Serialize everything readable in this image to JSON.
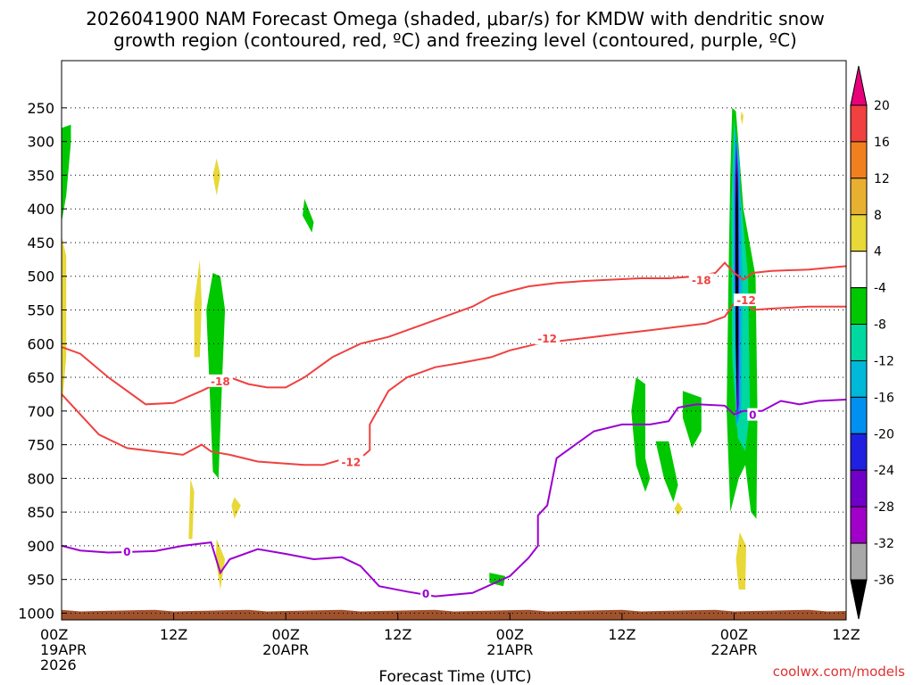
{
  "chart_data": {
    "type": "heatmap",
    "title_lines": [
      "2026041900 NAM Forecast Omega (shaded, μbar/s) for KMDW with dendritic snow",
      "growth region (contoured, red, ºC) and freezing level (contoured, purple, ºC)"
    ],
    "xlabel": "Forecast Time (UTC)",
    "credit": "coolwx.com/models",
    "x_range_hours": [
      0,
      84
    ],
    "y_range_hpa": [
      1010,
      180
    ],
    "y_ticks": [
      250,
      300,
      350,
      400,
      450,
      500,
      550,
      600,
      650,
      700,
      750,
      800,
      850,
      900,
      950,
      1000
    ],
    "x_ticks": [
      {
        "h": 0,
        "lines": [
          "00Z",
          "19APR",
          "2026"
        ]
      },
      {
        "h": 12,
        "lines": [
          "12Z"
        ]
      },
      {
        "h": 24,
        "lines": [
          "00Z",
          "20APR"
        ]
      },
      {
        "h": 36,
        "lines": [
          "12Z"
        ]
      },
      {
        "h": 48,
        "lines": [
          "00Z",
          "21APR"
        ]
      },
      {
        "h": 60,
        "lines": [
          "12Z"
        ]
      },
      {
        "h": 72,
        "lines": [
          "00Z",
          "22APR"
        ]
      },
      {
        "h": 84,
        "lines": [
          "12Z"
        ]
      }
    ],
    "colorbar": {
      "levels": [
        "20",
        "16",
        "12",
        "8",
        "4",
        "-4",
        "-8",
        "-12",
        "-16",
        "-20",
        "-24",
        "-28",
        "-32",
        "-36"
      ],
      "colors": [
        "#e8007a",
        "#f04040",
        "#f07f20",
        "#e8b030",
        "#e8d838",
        "#ffffff",
        "#00c800",
        "#00d8a0",
        "#00b8d8",
        "#0090f0",
        "#2020e0",
        "#7000c8",
        "#a000c8",
        "#a8a8a8",
        "#000000"
      ]
    },
    "contours": {
      "freezing_level_0C": {
        "color": "#9b00d0",
        "label": "0",
        "points": [
          [
            0,
            900
          ],
          [
            2,
            907
          ],
          [
            5,
            910
          ],
          [
            10,
            908
          ],
          [
            13,
            900
          ],
          [
            16,
            895
          ],
          [
            17,
            940
          ],
          [
            18,
            920
          ],
          [
            21,
            905
          ],
          [
            24,
            912
          ],
          [
            27,
            920
          ],
          [
            30,
            917
          ],
          [
            32,
            930
          ],
          [
            34,
            960
          ],
          [
            37,
            968
          ],
          [
            40,
            975
          ],
          [
            44,
            970
          ],
          [
            48,
            945
          ],
          [
            50,
            918
          ],
          [
            51,
            900
          ],
          [
            51,
            855
          ],
          [
            52,
            840
          ],
          [
            53,
            770
          ],
          [
            55,
            750
          ],
          [
            57,
            730
          ],
          [
            60,
            720
          ],
          [
            63,
            720
          ],
          [
            65,
            715
          ],
          [
            66,
            695
          ],
          [
            68,
            690
          ],
          [
            71,
            692
          ],
          [
            72,
            705
          ],
          [
            73,
            700
          ],
          [
            75,
            700
          ],
          [
            77,
            685
          ],
          [
            79,
            690
          ],
          [
            81,
            685
          ],
          [
            84,
            683
          ]
        ]
      },
      "minus12C": {
        "color": "#f04040",
        "label": "-12",
        "points": [
          [
            0,
            675
          ],
          [
            2,
            705
          ],
          [
            4,
            735
          ],
          [
            7,
            755
          ],
          [
            10,
            760
          ],
          [
            13,
            765
          ],
          [
            15,
            750
          ],
          [
            16,
            760
          ],
          [
            18,
            765
          ],
          [
            21,
            775
          ],
          [
            24,
            778
          ],
          [
            26,
            780
          ],
          [
            28,
            780
          ],
          [
            30,
            772
          ],
          [
            32,
            770
          ],
          [
            33,
            758
          ],
          [
            33,
            720
          ],
          [
            35,
            670
          ],
          [
            37,
            650
          ],
          [
            40,
            635
          ],
          [
            43,
            628
          ],
          [
            46,
            620
          ],
          [
            48,
            610
          ],
          [
            51,
            600
          ],
          [
            54,
            595
          ],
          [
            57,
            590
          ],
          [
            60,
            585
          ],
          [
            63,
            580
          ],
          [
            66,
            575
          ],
          [
            69,
            570
          ],
          [
            71,
            560
          ],
          [
            72,
            540
          ],
          [
            73,
            530
          ],
          [
            74,
            550
          ],
          [
            76,
            548
          ],
          [
            80,
            545
          ],
          [
            84,
            545
          ]
        ]
      },
      "minus18C": {
        "color": "#f04040",
        "label": "-18",
        "points": [
          [
            0,
            605
          ],
          [
            2,
            615
          ],
          [
            5,
            650
          ],
          [
            9,
            690
          ],
          [
            12,
            688
          ],
          [
            15,
            670
          ],
          [
            18,
            650
          ],
          [
            20,
            660
          ],
          [
            22,
            665
          ],
          [
            24,
            665
          ],
          [
            26,
            650
          ],
          [
            29,
            620
          ],
          [
            32,
            600
          ],
          [
            35,
            590
          ],
          [
            38,
            575
          ],
          [
            41,
            560
          ],
          [
            44,
            545
          ],
          [
            46,
            530
          ],
          [
            48,
            522
          ],
          [
            50,
            515
          ],
          [
            53,
            510
          ],
          [
            56,
            507
          ],
          [
            59,
            505
          ],
          [
            62,
            503
          ],
          [
            65,
            503
          ],
          [
            68,
            500
          ],
          [
            70,
            495
          ],
          [
            71,
            480
          ],
          [
            72,
            495
          ],
          [
            73,
            505
          ],
          [
            74,
            495
          ],
          [
            76,
            492
          ],
          [
            80,
            490
          ],
          [
            84,
            485
          ]
        ]
      }
    },
    "omega_areas": [
      {
        "name": "omega-lift-minus4-a",
        "color": "#00c800",
        "points": [
          [
            0,
            280
          ],
          [
            1,
            275
          ],
          [
            1,
            300
          ],
          [
            0.5,
            380
          ],
          [
            0,
            420
          ]
        ]
      },
      {
        "name": "omega-sink-plus4-a",
        "color": "#e8d838",
        "points": [
          [
            0,
            440
          ],
          [
            0.5,
            470
          ],
          [
            0.5,
            620
          ],
          [
            0,
            700
          ]
        ]
      },
      {
        "name": "omega-sink-plus4-b",
        "color": "#e8d838",
        "points": [
          [
            16.6,
            325
          ],
          [
            17,
            350
          ],
          [
            16.6,
            380
          ],
          [
            16.2,
            350
          ]
        ]
      },
      {
        "name": "omega-sink-plus4-c",
        "color": "#e8d838",
        "points": [
          [
            14.8,
            475
          ],
          [
            15,
            540
          ],
          [
            14.8,
            620
          ],
          [
            14.2,
            620
          ],
          [
            14.2,
            540
          ]
        ]
      },
      {
        "name": "omega-lift-minus4-b",
        "color": "#00c800",
        "points": [
          [
            16.2,
            495
          ],
          [
            17,
            500
          ],
          [
            17.5,
            550
          ],
          [
            17.2,
            650
          ],
          [
            16.8,
            800
          ],
          [
            16.2,
            790
          ],
          [
            15.8,
            650
          ],
          [
            15.5,
            550
          ]
        ]
      },
      {
        "name": "omega-sink-plus4-d",
        "color": "#e8d838",
        "points": [
          [
            13.8,
            800
          ],
          [
            14.2,
            820
          ],
          [
            14,
            890
          ],
          [
            13.6,
            890
          ]
        ]
      },
      {
        "name": "omega-sink-plus4-e",
        "color": "#e8d838",
        "points": [
          [
            16.6,
            890
          ],
          [
            17.5,
            920
          ],
          [
            17,
            965
          ],
          [
            16.5,
            920
          ]
        ]
      },
      {
        "name": "omega-sink-plus4-f",
        "color": "#e8d838",
        "points": [
          [
            18.5,
            828
          ],
          [
            19.2,
            840
          ],
          [
            18.5,
            860
          ],
          [
            18.2,
            840
          ]
        ]
      },
      {
        "name": "omega-lift-minus4-c",
        "color": "#00c800",
        "points": [
          [
            26,
            385
          ],
          [
            27,
            420
          ],
          [
            26.8,
            435
          ],
          [
            25.8,
            410
          ]
        ]
      },
      {
        "name": "omega-lift-minus4-d",
        "color": "#00c800",
        "points": [
          [
            45.8,
            940
          ],
          [
            47.5,
            945
          ],
          [
            47.3,
            960
          ],
          [
            45.8,
            955
          ]
        ]
      },
      {
        "name": "omega-lift-minus4-e",
        "color": "#00c800",
        "points": [
          [
            61.5,
            650
          ],
          [
            62.5,
            660
          ],
          [
            62.5,
            770
          ],
          [
            63,
            800
          ],
          [
            62.5,
            820
          ],
          [
            61.5,
            780
          ],
          [
            61,
            700
          ]
        ]
      },
      {
        "name": "omega-lift-minus4-f",
        "color": "#00c800",
        "points": [
          [
            63.6,
            745
          ],
          [
            65,
            745
          ],
          [
            66,
            810
          ],
          [
            65.5,
            835
          ],
          [
            64.5,
            800
          ]
        ]
      },
      {
        "name": "omega-lift-minus4-g",
        "color": "#00c800",
        "points": [
          [
            66.5,
            670
          ],
          [
            68.5,
            680
          ],
          [
            68.5,
            730
          ],
          [
            67.5,
            755
          ],
          [
            66.5,
            710
          ]
        ]
      },
      {
        "name": "omega-sink-plus4-g",
        "color": "#e8d838",
        "points": [
          [
            66,
            835
          ],
          [
            66.5,
            845
          ],
          [
            66,
            855
          ],
          [
            65.6,
            845
          ]
        ]
      },
      {
        "name": "omega-lift-minus4-h",
        "color": "#00c800",
        "points": [
          [
            71.8,
            250
          ],
          [
            72.2,
            255
          ],
          [
            73,
            400
          ],
          [
            74.3,
            500
          ],
          [
            74.5,
            700
          ],
          [
            74.4,
            860
          ],
          [
            73.8,
            850
          ],
          [
            73.2,
            780
          ],
          [
            72.5,
            800
          ],
          [
            71.6,
            850
          ],
          [
            71.2,
            700
          ],
          [
            71.4,
            500
          ],
          [
            71.6,
            350
          ]
        ]
      },
      {
        "name": "omega-lift-minus8",
        "color": "#00d8a0",
        "points": [
          [
            72,
            265
          ],
          [
            72.5,
            350
          ],
          [
            73.5,
            500
          ],
          [
            73.7,
            700
          ],
          [
            73.2,
            760
          ],
          [
            72.4,
            740
          ],
          [
            71.8,
            620
          ],
          [
            71.7,
            400
          ]
        ]
      },
      {
        "name": "omega-lift-minus12",
        "color": "#00b8d8",
        "points": [
          [
            72.1,
            280
          ],
          [
            72.6,
            330
          ],
          [
            72.9,
            500
          ],
          [
            72.8,
            700
          ],
          [
            72.2,
            725
          ],
          [
            71.9,
            500
          ],
          [
            71.9,
            350
          ]
        ]
      },
      {
        "name": "omega-lift-minus20",
        "color": "#0090f0",
        "points": [
          [
            72.2,
            290
          ],
          [
            72.5,
            350
          ],
          [
            72.6,
            500
          ],
          [
            72.6,
            700
          ],
          [
            72.3,
            720
          ],
          [
            72.05,
            500
          ],
          [
            72.05,
            350
          ]
        ]
      },
      {
        "name": "omega-lift-minus28",
        "color": "#7000c8",
        "points": [
          [
            72.25,
            300
          ],
          [
            72.45,
            360
          ],
          [
            72.5,
            500
          ],
          [
            72.5,
            690
          ],
          [
            72.3,
            710
          ],
          [
            72.1,
            500
          ],
          [
            72.1,
            360
          ]
        ]
      },
      {
        "name": "omega-lift-minus36-core",
        "color": "#000000",
        "points": [
          [
            72.3,
            330
          ],
          [
            72.42,
            400
          ],
          [
            72.42,
            600
          ],
          [
            72.32,
            690
          ],
          [
            72.18,
            600
          ],
          [
            72.18,
            400
          ]
        ]
      },
      {
        "name": "omega-sink-plus4-h",
        "color": "#e8d838",
        "points": [
          [
            72.8,
            255
          ],
          [
            73,
            262
          ],
          [
            72.9,
            275
          ],
          [
            72.7,
            265
          ]
        ]
      },
      {
        "name": "omega-sink-plus4-i",
        "color": "#e8d838",
        "points": [
          [
            72.6,
            880
          ],
          [
            73.3,
            900
          ],
          [
            73.2,
            965
          ],
          [
            72.5,
            965
          ],
          [
            72.2,
            920
          ]
        ]
      }
    ]
  }
}
